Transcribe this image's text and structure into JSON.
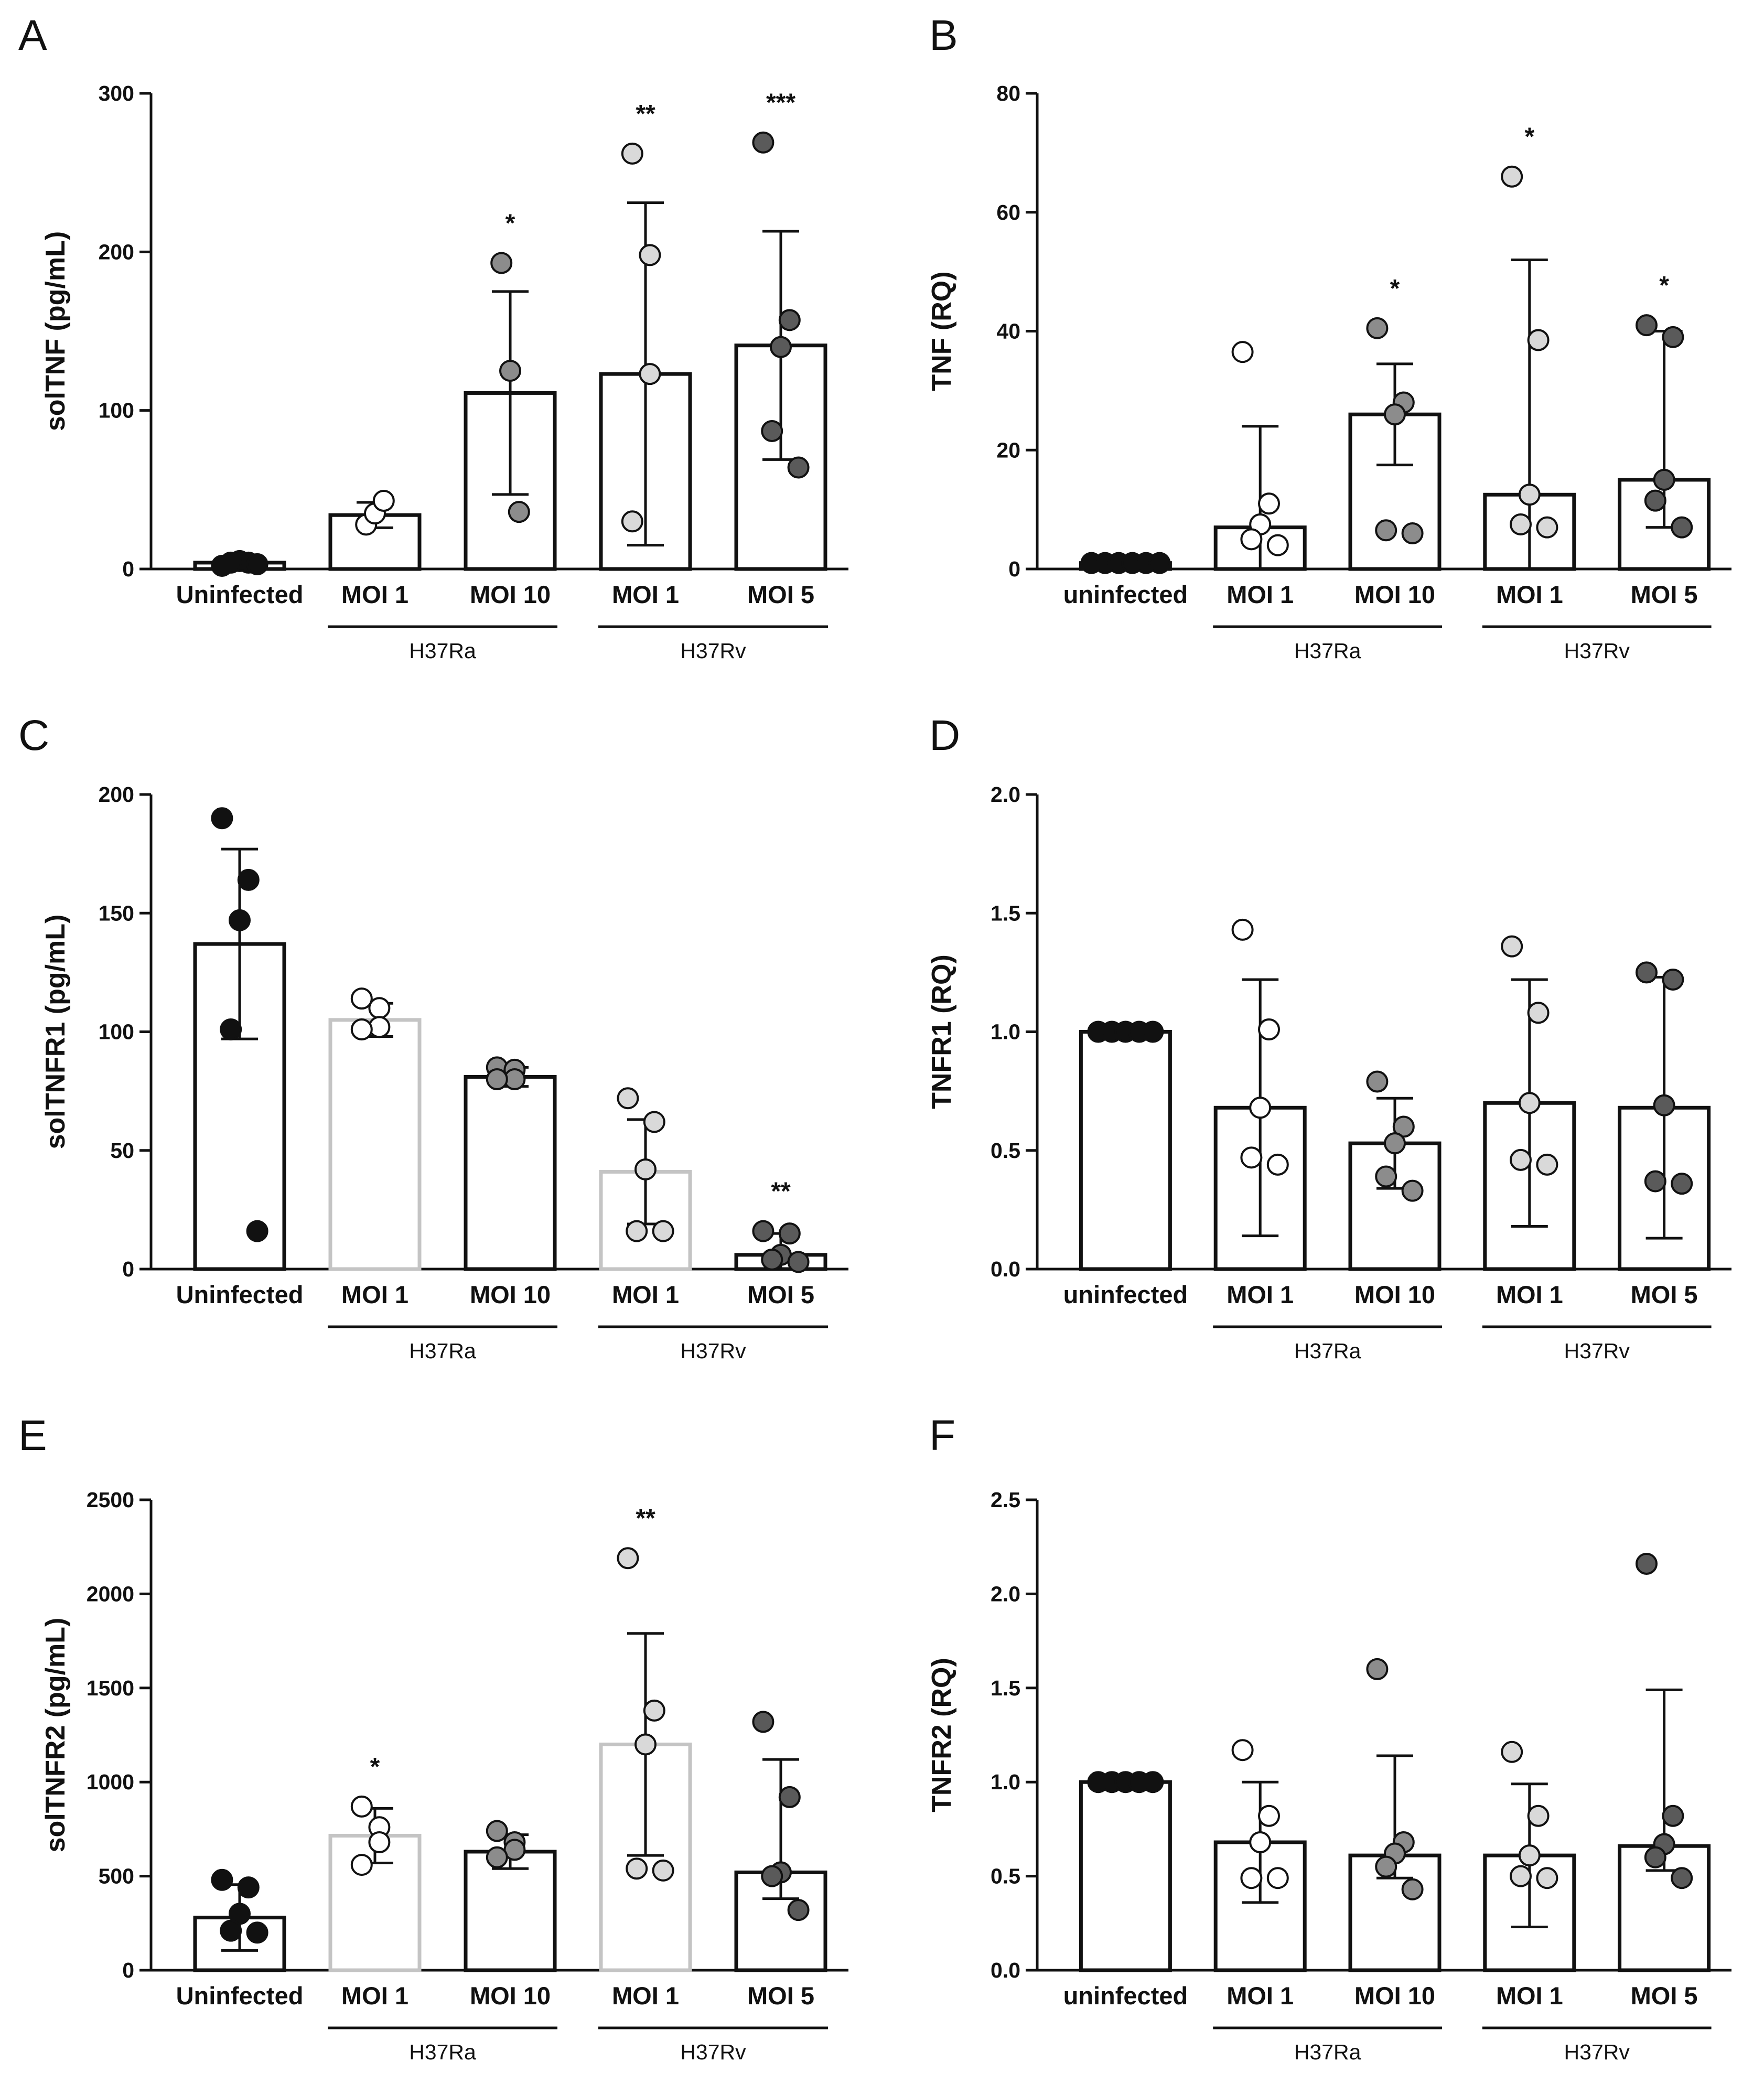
{
  "colors": {
    "uninfected": "#111111",
    "h37ra_moi1": "#ffffff",
    "h37ra_moi10": "#8c8c8c",
    "h37rv_moi1": "#d9d9d9",
    "h37rv_moi5": "#5a5a5a",
    "bar_dark": "#111111",
    "bar_light": "#c4c4c4"
  },
  "chart_data": [
    {
      "panel": "A",
      "type": "bar",
      "ylabel": "solTNF (pg/mL)",
      "ylim": [
        0,
        300
      ],
      "yticks": [
        "0",
        "100",
        "200",
        "300"
      ],
      "ytick_values": [
        0,
        100,
        200,
        300
      ],
      "categories": [
        "Uninfected",
        "MOI 1",
        "MOI 10",
        "MOI 1",
        "MOI 5"
      ],
      "groups": [
        {
          "label": "H37Ra",
          "from": 1,
          "to": 2
        },
        {
          "label": "H37Rv",
          "from": 3,
          "to": 4
        }
      ],
      "bars": [
        {
          "mean": 4,
          "sd": 0,
          "points": [
            2,
            4,
            5,
            4,
            3
          ],
          "sig": ""
        },
        {
          "mean": 34,
          "sd": 8,
          "points": [
            28,
            35,
            43
          ],
          "sig": ""
        },
        {
          "mean": 111,
          "sd": 64,
          "points": [
            193,
            125,
            36
          ],
          "sig": "*"
        },
        {
          "mean": 123,
          "sd": 108,
          "points": [
            262,
            198,
            123,
            30
          ],
          "sig": "**"
        },
        {
          "mean": 141,
          "sd": 72,
          "points": [
            269,
            157,
            140,
            87,
            64
          ],
          "sig": "***"
        }
      ]
    },
    {
      "panel": "B",
      "type": "bar",
      "ylabel": "TNF (RQ)",
      "ylim": [
        0,
        80
      ],
      "yticks": [
        "0",
        "20",
        "40",
        "60",
        "80"
      ],
      "ytick_values": [
        0,
        20,
        40,
        60,
        80
      ],
      "categories": [
        "uninfected",
        "MOI 1",
        "MOI 10",
        "MOI 1",
        "MOI 5"
      ],
      "groups": [
        {
          "label": "H37Ra",
          "from": 1,
          "to": 2
        },
        {
          "label": "H37Rv",
          "from": 3,
          "to": 4
        }
      ],
      "bars": [
        {
          "mean": 1,
          "sd": 0,
          "points": [
            1,
            1,
            1,
            1,
            1,
            1
          ],
          "sig": ""
        },
        {
          "mean": 7,
          "sd": 17,
          "points": [
            36.5,
            11,
            7.5,
            5,
            4
          ],
          "sig": ""
        },
        {
          "mean": 26,
          "sd": 8.5,
          "points": [
            40.5,
            28,
            26,
            6.5,
            6
          ],
          "sig": "*"
        },
        {
          "mean": 12.5,
          "sd": 39.5,
          "points": [
            66,
            38.5,
            12.5,
            7.5,
            7
          ],
          "sig": "*"
        },
        {
          "mean": 15,
          "sd": 25,
          "points": [
            41,
            39,
            15,
            11.5,
            7
          ],
          "lower_whisker": 7,
          "upper_whisker": 40,
          "sig": "*"
        }
      ]
    },
    {
      "panel": "C",
      "type": "bar",
      "ylabel": "solTNFR1 (pg/mL)",
      "ylim": [
        0,
        200
      ],
      "yticks": [
        "0",
        "50",
        "100",
        "150",
        "200"
      ],
      "ytick_values": [
        0,
        50,
        100,
        150,
        200
      ],
      "categories": [
        "Uninfected",
        "MOI 1",
        "MOI 10",
        "MOI 1",
        "MOI 5"
      ],
      "groups": [
        {
          "label": "H37Ra",
          "from": 1,
          "to": 2
        },
        {
          "label": "H37Rv",
          "from": 3,
          "to": 4
        }
      ],
      "bars": [
        {
          "mean": 137,
          "sd": 40,
          "points": [
            190,
            164,
            147,
            101,
            16
          ],
          "sig": ""
        },
        {
          "mean": 105,
          "sd": 7,
          "points": [
            114,
            110,
            102,
            101
          ],
          "sig": ""
        },
        {
          "mean": 81,
          "sd": 4,
          "points": [
            85,
            84,
            80,
            80
          ],
          "sig": ""
        },
        {
          "mean": 41,
          "sd": 22,
          "points": [
            72,
            62,
            42,
            16,
            16
          ],
          "sig": ""
        },
        {
          "mean": 6,
          "sd": 9,
          "points": [
            16,
            15,
            6,
            4,
            3
          ],
          "sig": "**"
        }
      ]
    },
    {
      "panel": "D",
      "type": "bar",
      "ylabel": "TNFR1 (RQ)",
      "ylim": [
        0,
        2.0
      ],
      "yticks": [
        "0.0",
        "0.5",
        "1.0",
        "1.5",
        "2.0"
      ],
      "ytick_values": [
        0,
        0.5,
        1.0,
        1.5,
        2.0
      ],
      "categories": [
        "uninfected",
        "MOI 1",
        "MOI 10",
        "MOI 1",
        "MOI 5"
      ],
      "groups": [
        {
          "label": "H37Ra",
          "from": 1,
          "to": 2
        },
        {
          "label": "H37Rv",
          "from": 3,
          "to": 4
        }
      ],
      "bars": [
        {
          "mean": 1.0,
          "sd": 0,
          "points": [
            1,
            1,
            1,
            1,
            1
          ],
          "sig": ""
        },
        {
          "mean": 0.68,
          "sd": 0.54,
          "points": [
            1.43,
            1.01,
            0.68,
            0.47,
            0.44
          ],
          "sig": ""
        },
        {
          "mean": 0.53,
          "sd": 0.19,
          "points": [
            0.79,
            0.6,
            0.53,
            0.39,
            0.33
          ],
          "sig": ""
        },
        {
          "mean": 0.7,
          "sd": 0.52,
          "points": [
            1.36,
            1.08,
            0.7,
            0.46,
            0.44
          ],
          "sig": ""
        },
        {
          "mean": 0.68,
          "sd": 0.55,
          "points": [
            1.25,
            1.22,
            0.69,
            0.37,
            0.36
          ],
          "sig": ""
        }
      ]
    },
    {
      "panel": "E",
      "type": "bar",
      "ylabel": "solTNFR2 (pg/mL)",
      "ylim": [
        0,
        2500
      ],
      "yticks": [
        "0",
        "500",
        "1000",
        "1500",
        "2000",
        "2500"
      ],
      "ytick_values": [
        0,
        500,
        1000,
        1500,
        2000,
        2500
      ],
      "categories": [
        "Uninfected",
        "MOI 1",
        "MOI 10",
        "MOI 1",
        "MOI 5"
      ],
      "groups": [
        {
          "label": "H37Ra",
          "from": 1,
          "to": 2
        },
        {
          "label": "H37Rv",
          "from": 3,
          "to": 4
        }
      ],
      "bars": [
        {
          "mean": 280,
          "sd": 175,
          "points": [
            480,
            440,
            300,
            210,
            200
          ],
          "sig": ""
        },
        {
          "mean": 715,
          "sd": 145,
          "points": [
            870,
            760,
            680,
            560
          ],
          "sig": "*"
        },
        {
          "mean": 630,
          "sd": 90,
          "points": [
            740,
            680,
            640,
            600
          ],
          "sig": ""
        },
        {
          "mean": 1200,
          "sd": 590,
          "points": [
            2190,
            1380,
            1200,
            540,
            530
          ],
          "sig": "**"
        },
        {
          "mean": 520,
          "sd": 600,
          "points": [
            1320,
            920,
            520,
            500,
            320
          ],
          "lower_whisker": 380,
          "upper_whisker": 1120,
          "sig": ""
        }
      ]
    },
    {
      "panel": "F",
      "type": "bar",
      "ylabel": "TNFR2 (RQ)",
      "ylim": [
        0,
        2.5
      ],
      "yticks": [
        "0.0",
        "0.5",
        "1.0",
        "1.5",
        "2.0",
        "2.5"
      ],
      "ytick_values": [
        0,
        0.5,
        1.0,
        1.5,
        2.0,
        2.5
      ],
      "categories": [
        "uninfected",
        "MOI 1",
        "MOI 10",
        "MOI 1",
        "MOI 5"
      ],
      "groups": [
        {
          "label": "H37Ra",
          "from": 1,
          "to": 2
        },
        {
          "label": "H37Rv",
          "from": 3,
          "to": 4
        }
      ],
      "bars": [
        {
          "mean": 1.0,
          "sd": 0,
          "points": [
            1,
            1,
            1,
            1,
            1
          ],
          "sig": ""
        },
        {
          "mean": 0.68,
          "sd": 0.32,
          "points": [
            1.17,
            0.82,
            0.68,
            0.49,
            0.49
          ],
          "sig": ""
        },
        {
          "mean": 0.61,
          "sd": 0.53,
          "points": [
            1.6,
            0.68,
            0.62,
            0.55,
            0.43
          ],
          "lower_whisker": 0.49,
          "upper_whisker": 1.14,
          "sig": ""
        },
        {
          "mean": 0.61,
          "sd": 0.38,
          "points": [
            1.16,
            0.82,
            0.61,
            0.5,
            0.49
          ],
          "sig": ""
        },
        {
          "mean": 0.66,
          "sd": 0.83,
          "points": [
            2.16,
            0.82,
            0.67,
            0.6,
            0.49
          ],
          "lower_whisker": 0.53,
          "upper_whisker": 1.49,
          "sig": ""
        }
      ]
    }
  ]
}
